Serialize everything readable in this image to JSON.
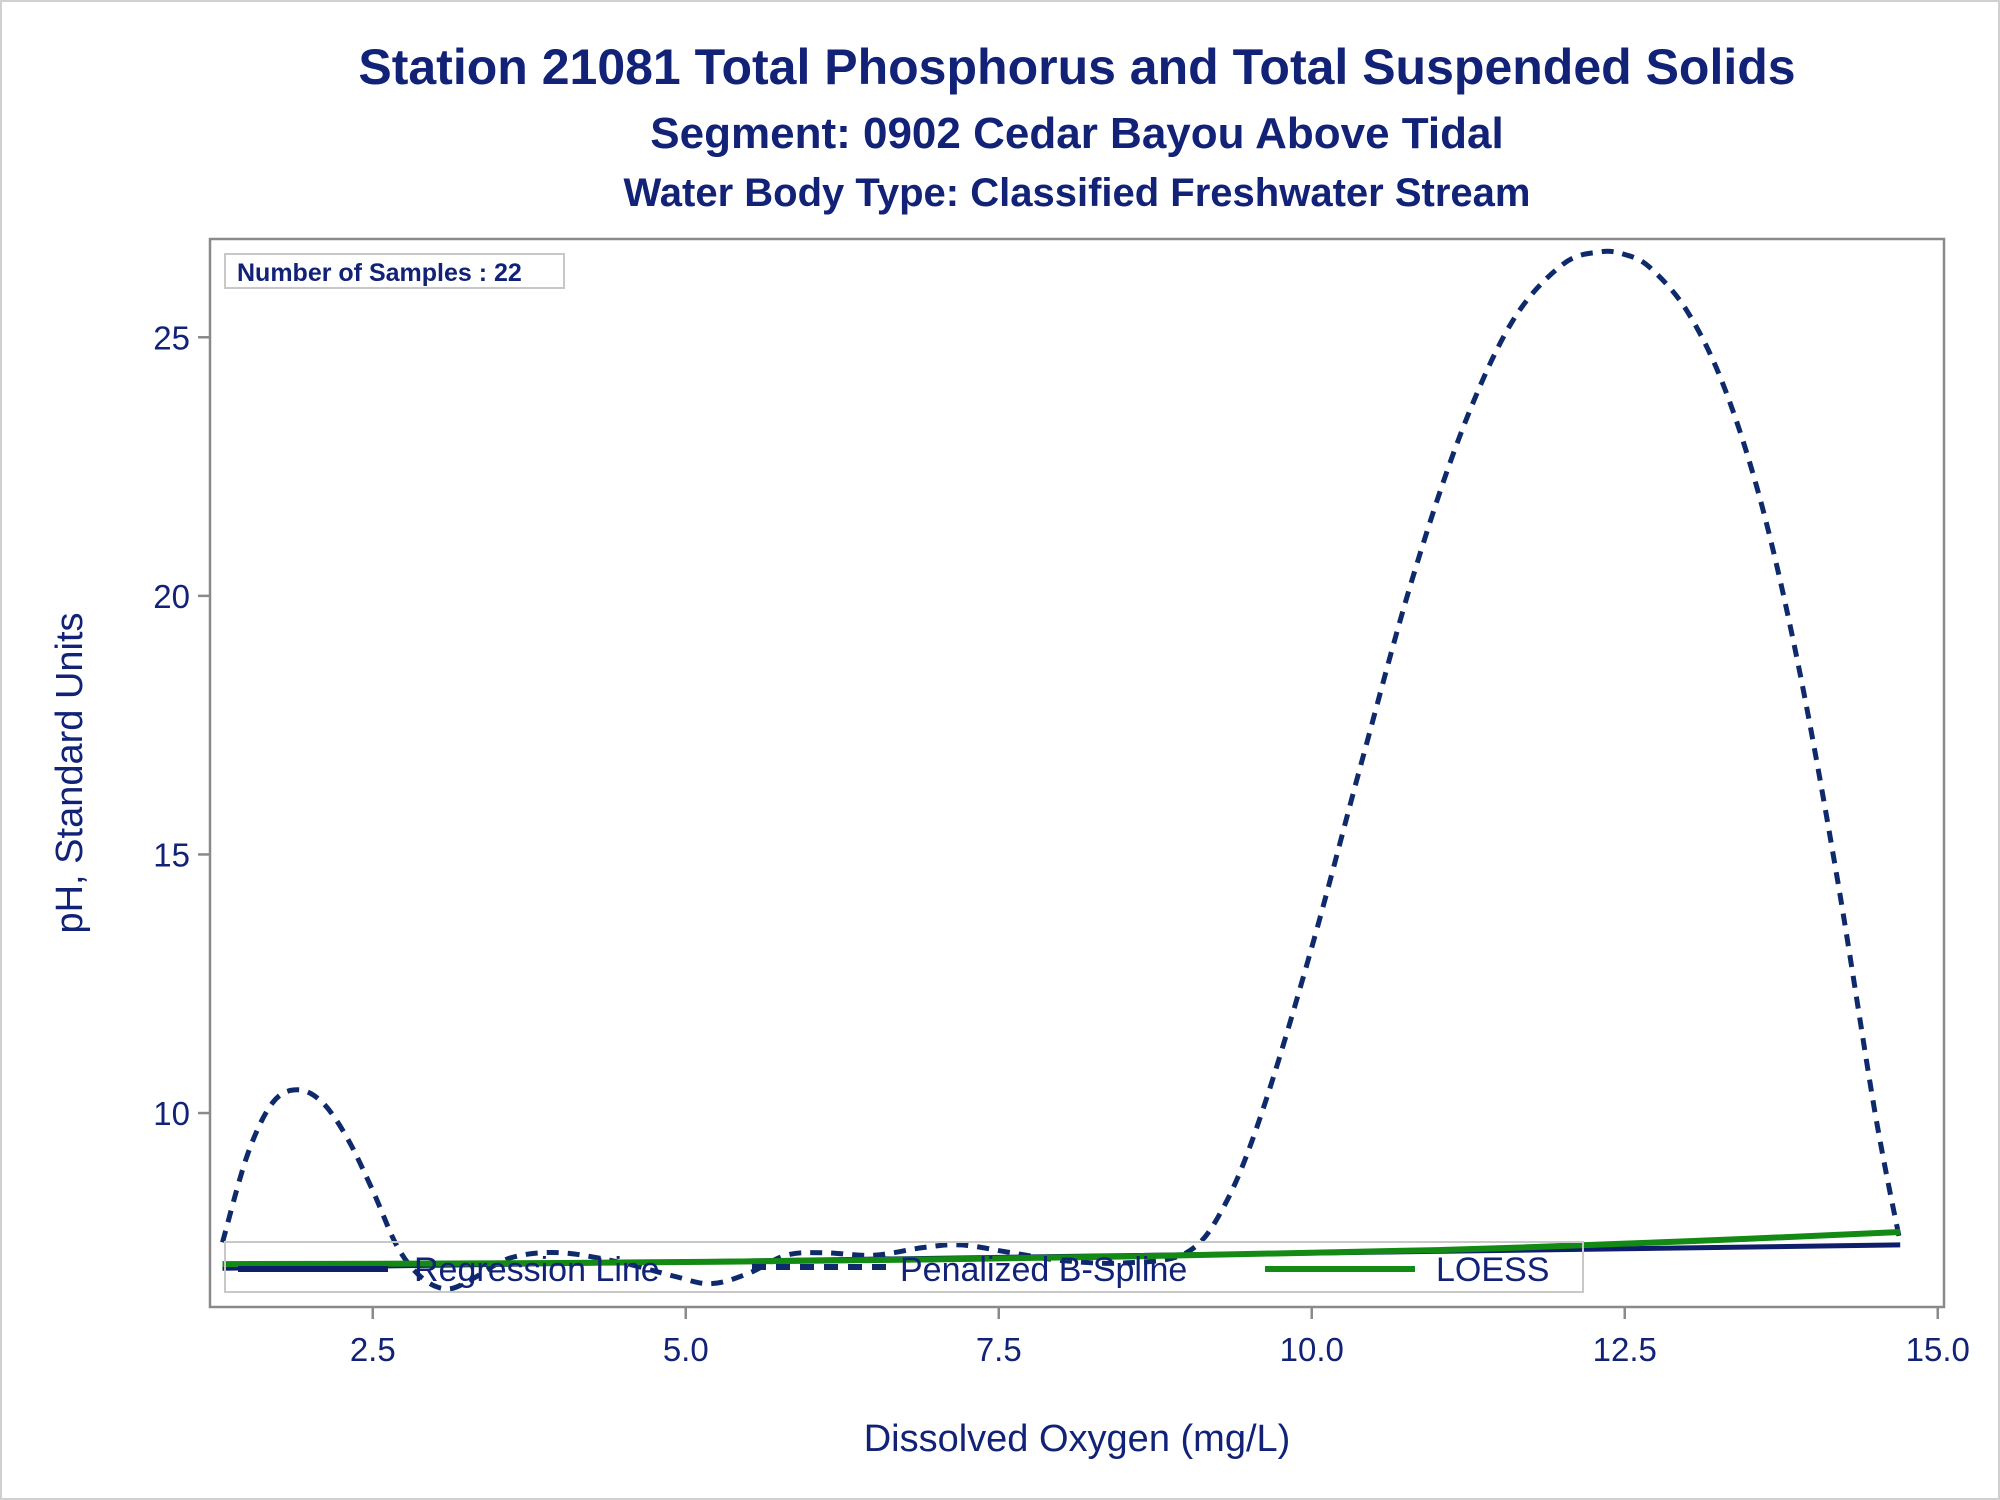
{
  "titles": {
    "line1": "Station 21081  Total Phosphorus and Total Suspended Solids",
    "line2": "Segment: 0902  Cedar Bayou Above Tidal",
    "line3": "Water Body Type: Classified Freshwater Stream"
  },
  "inset": "Number of Samples : 22",
  "colors": {
    "text": "#112277",
    "regression": "#0e1e6b",
    "spline": "#0e2a6b",
    "loess": "#138a13",
    "axis": "#8a8a8a"
  },
  "chart_data": {
    "type": "line",
    "title": "Station 21081  Total Phosphorus and Total Suspended Solids",
    "subtitle": "Segment: 0902  Cedar Bayou Above Tidal",
    "xlabel": "Dissolved Oxygen (mg/L)",
    "ylabel": "pH, Standard Units",
    "xlim": [
      1.2,
      15.05
    ],
    "ylim": [
      6.25,
      26.9
    ],
    "x_ticks": [
      2.5,
      5.0,
      7.5,
      10.0,
      12.5,
      15.0
    ],
    "x_tick_labels": [
      "2.5",
      "5.0",
      "7.5",
      "10.0",
      "12.5",
      "15.0"
    ],
    "y_ticks": [
      10,
      15,
      20,
      25
    ],
    "y_tick_labels": [
      "10",
      "15",
      "20",
      "25"
    ],
    "grid": false,
    "legend_position": "bottom-inside",
    "series": [
      {
        "name": "Regression Line",
        "style": "solid",
        "x": [
          1.3,
          14.7
        ],
        "y": [
          7.0,
          7.45
        ]
      },
      {
        "name": "Penalized B-Spline",
        "style": "dashed",
        "x": [
          1.3,
          1.5,
          1.7,
          1.9,
          2.1,
          2.3,
          2.5,
          2.7,
          2.9,
          3.1,
          3.3,
          3.6,
          4.0,
          4.5,
          4.9,
          5.2,
          5.5,
          5.8,
          6.1,
          6.5,
          6.9,
          7.2,
          7.6,
          8.0,
          8.5,
          9.0,
          9.3,
          9.6,
          10.0,
          10.4,
          10.8,
          11.2,
          11.6,
          12.0,
          12.3,
          12.5,
          12.7,
          13.0,
          13.3,
          13.6,
          13.9,
          14.2,
          14.5,
          14.7
        ],
        "y": [
          7.5,
          9.2,
          10.2,
          10.45,
          10.2,
          9.5,
          8.5,
          7.4,
          6.8,
          6.6,
          6.8,
          7.2,
          7.3,
          7.1,
          6.85,
          6.7,
          6.9,
          7.25,
          7.3,
          7.25,
          7.4,
          7.45,
          7.3,
          7.15,
          7.1,
          7.3,
          8.2,
          10.0,
          13.2,
          16.8,
          20.3,
          23.2,
          25.3,
          26.4,
          26.65,
          26.6,
          26.35,
          25.5,
          24.0,
          21.7,
          18.5,
          14.5,
          10.0,
          7.5
        ]
      },
      {
        "name": "LOESS",
        "style": "solid",
        "x": [
          1.3,
          4.0,
          7.0,
          9.0,
          11.0,
          13.0,
          14.7
        ],
        "y": [
          7.08,
          7.1,
          7.17,
          7.25,
          7.35,
          7.52,
          7.7
        ]
      }
    ]
  }
}
